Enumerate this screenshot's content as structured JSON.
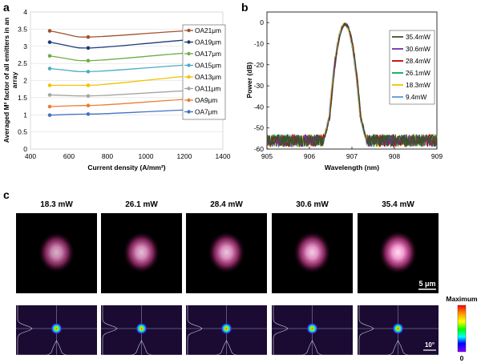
{
  "panels": {
    "a": "a",
    "b": "b",
    "c": "c"
  },
  "chart_data": [
    {
      "type": "line",
      "ylabel_line1": "Averaged M² factor of all emitters in an",
      "ylabel_line2": "array",
      "xlabel": "Current density (A/mm²)",
      "xlim": [
        400,
        1400
      ],
      "ylim": [
        0,
        4
      ],
      "xticks": [
        "400",
        "600",
        "800",
        "1000",
        "1200",
        "1400"
      ],
      "yticks": [
        "0",
        "0.5",
        "1",
        "1.5",
        "2",
        "2.5",
        "3",
        "3.5",
        "4"
      ],
      "x": [
        500,
        700,
        1200
      ],
      "series": [
        {
          "name": "OA21μm",
          "color": "#a0522d",
          "values": [
            3.45,
            3.27,
            3.45
          ]
        },
        {
          "name": "OA19μm",
          "color": "#1f3a7a",
          "values": [
            3.12,
            2.95,
            3.18
          ]
        },
        {
          "name": "OA17μm",
          "color": "#70ad47",
          "values": [
            2.72,
            2.58,
            2.8
          ]
        },
        {
          "name": "OA15μm",
          "color": "#4bacc6",
          "values": [
            2.35,
            2.26,
            2.45
          ]
        },
        {
          "name": "OA13μm",
          "color": "#f2c300",
          "values": [
            1.86,
            1.86,
            2.12
          ]
        },
        {
          "name": "OA11μm",
          "color": "#a5a5a5",
          "values": [
            1.58,
            1.55,
            1.7
          ]
        },
        {
          "name": "OA9μm",
          "color": "#ed7d31",
          "values": [
            1.24,
            1.27,
            1.45
          ]
        },
        {
          "name": "OA7μm",
          "color": "#4472c4",
          "values": [
            0.99,
            1.02,
            1.14
          ]
        }
      ]
    },
    {
      "type": "line",
      "ylabel": "Power (dB)",
      "xlabel": "Wavelength (nm)",
      "xlim": [
        905,
        909
      ],
      "ylim": [
        -60,
        5
      ],
      "xticks": [
        "905",
        "906",
        "907",
        "908",
        "909"
      ],
      "yticks": [
        "0",
        "-10",
        "-20",
        "-30",
        "-40",
        "-50",
        "-60"
      ],
      "series": [
        {
          "name": "35.4mW",
          "color": "#375623",
          "peak": 906.85,
          "side": 906.62,
          "side_level": -16
        },
        {
          "name": "30.6mW",
          "color": "#7030a0",
          "peak": 906.85,
          "side": 906.64,
          "side_level": -27
        },
        {
          "name": "28.4mW",
          "color": "#c00000",
          "peak": 906.84,
          "side": null,
          "side_level": null
        },
        {
          "name": "26.1mW",
          "color": "#00b050",
          "peak": 906.84,
          "side": null,
          "side_level": null
        },
        {
          "name": "18.3mW",
          "color": "#f2c300",
          "peak": 906.83,
          "side": null,
          "side_level": null
        },
        {
          "name": "9.4mW",
          "color": "#5b9bd5",
          "peak": 906.82,
          "side": null,
          "side_level": null
        }
      ]
    }
  ],
  "beam_images": {
    "powers": [
      "18.3 mW",
      "26.1 mW",
      "28.4 mW",
      "30.6 mW",
      "35.4 mW"
    ],
    "brightness": [
      0.6,
      0.72,
      0.78,
      0.85,
      1.0
    ],
    "scale_bar": "5 μm",
    "angle_bar": "10°",
    "colorbar_max": "Maximum",
    "colorbar_min": "0"
  }
}
